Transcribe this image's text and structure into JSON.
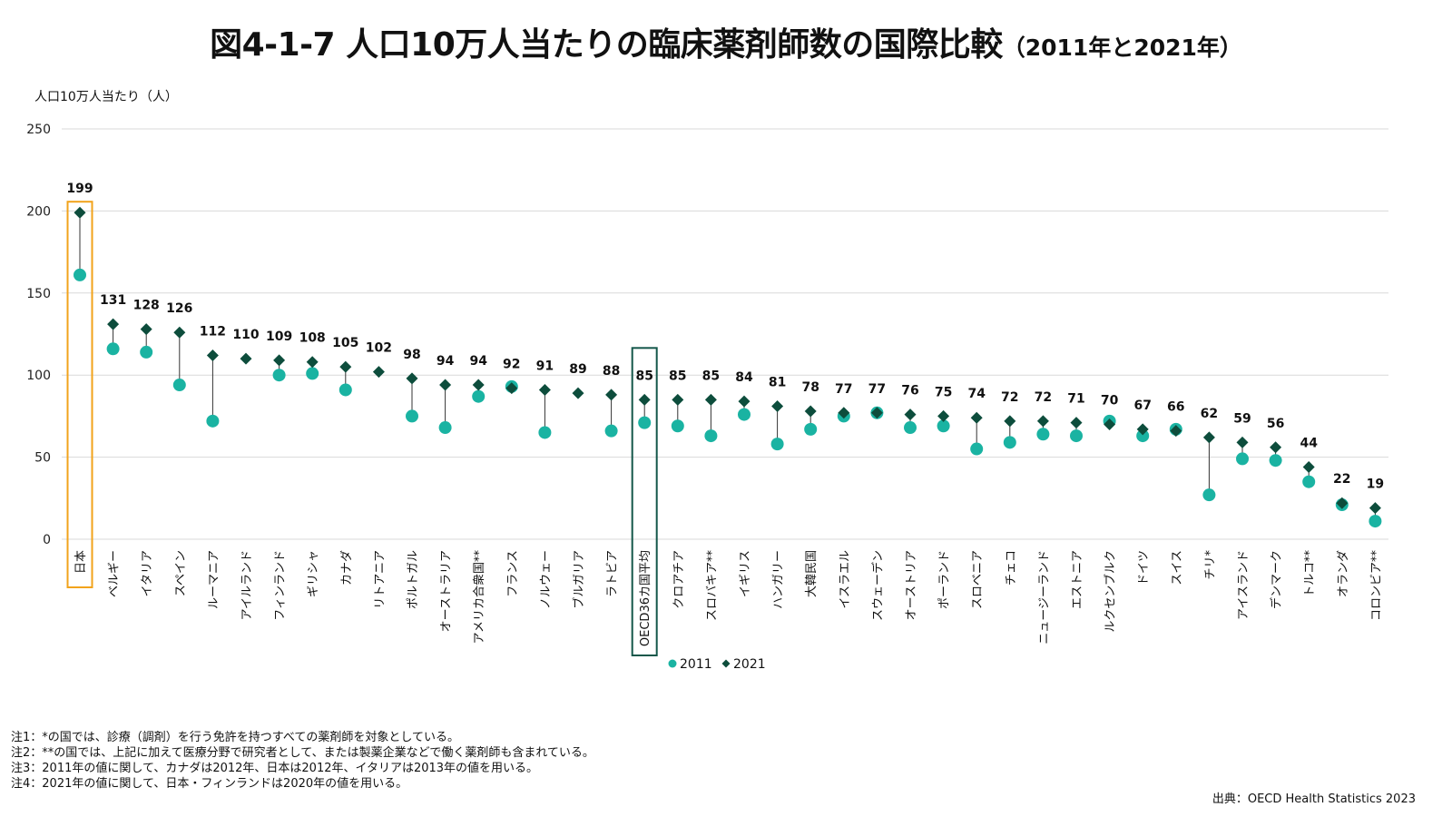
{
  "title": {
    "main": "図4-1-7 人口10万人当たりの臨床薬剤師数の国際比較",
    "sub": "（2011年と2021年）"
  },
  "colors": {
    "series_2011": "#1ab3a2",
    "series_2021": "#0d4d3c",
    "highlight_japan": "#f2a31b",
    "highlight_oecd": "#14574a",
    "grid": "#d9d9d9",
    "connector": "#333333"
  },
  "chart_data": {
    "type": "scatter",
    "ylabel": "人口10万人当たり（人）",
    "ylim": [
      0,
      250
    ],
    "yticks": [
      "0",
      "50",
      "100",
      "150",
      "200",
      "250"
    ],
    "grid": true,
    "legend_position": "bottom-center",
    "categories": [
      "日本",
      "ベルギー",
      "イタリア",
      "スペイン",
      "ルーマニア",
      "アイルランド",
      "フィンランド",
      "ギリシャ",
      "カナダ",
      "リトアニア",
      "ポルトガル",
      "オーストラリア",
      "アメリカ合衆国**",
      "フランス",
      "ノルウェー",
      "ブルガリア",
      "ラトビア",
      "OECD36カ国平均",
      "クロアチア",
      "スロバキア**",
      "イギリス",
      "ハンガリー",
      "大韓民国",
      "イスラエル",
      "スウェーデン",
      "オーストリア",
      "ポーランド",
      "スロベニア",
      "チェコ",
      "ニュージーランド",
      "エストニア",
      "ルクセンブルク",
      "ドイツ",
      "スイス",
      "チリ*",
      "アイスランド",
      "デンマーク",
      "トルコ**",
      "オランダ",
      "コロンビア**"
    ],
    "highlighted_categories": [
      "日本",
      "OECD36カ国平均"
    ],
    "series": [
      {
        "name": "2011",
        "marker": "circle",
        "values": [
          161,
          116,
          114,
          94,
          72,
          null,
          100,
          101,
          91,
          null,
          75,
          68,
          87,
          93,
          65,
          null,
          66,
          71,
          69,
          63,
          76,
          58,
          67,
          75,
          77,
          68,
          69,
          55,
          59,
          64,
          63,
          72,
          63,
          67,
          27,
          49,
          48,
          35,
          21,
          11
        ]
      },
      {
        "name": "2021",
        "marker": "diamond",
        "values": [
          199,
          131,
          128,
          126,
          112,
          110,
          109,
          108,
          105,
          102,
          98,
          94,
          94,
          92,
          91,
          89,
          88,
          85,
          85,
          85,
          84,
          81,
          78,
          77,
          77,
          76,
          75,
          74,
          72,
          72,
          71,
          70,
          67,
          66,
          62,
          59,
          56,
          44,
          22,
          19
        ]
      }
    ],
    "data_labels": [
      "199",
      "131",
      "128",
      "126",
      "112",
      "110",
      "109",
      "108",
      "105",
      "102",
      "98",
      "94",
      "94",
      "92",
      "91",
      "89",
      "88",
      "85",
      "85",
      "85",
      "84",
      "81",
      "78",
      "77",
      "77",
      "76",
      "75",
      "74",
      "72",
      "72",
      "71",
      "70",
      "67",
      "66",
      "62",
      "59",
      "56",
      "44",
      "22",
      "19"
    ]
  },
  "notes": [
    "注1：*の国では、診療（調剤）を行う免許を持つすべての薬剤師を対象としている。",
    "注2：**の国では、上記に加えて医療分野で研究者として、または製薬企業などで働く薬剤師も含まれている。",
    "注3：2011年の値に関して、カナダは2012年、日本は2012年、イタリアは2013年の値を用いる。",
    "注4：2021年の値に関して、日本・フィンランドは2020年の値を用いる。"
  ],
  "source": "出典：OECD Health Statistics 2023"
}
